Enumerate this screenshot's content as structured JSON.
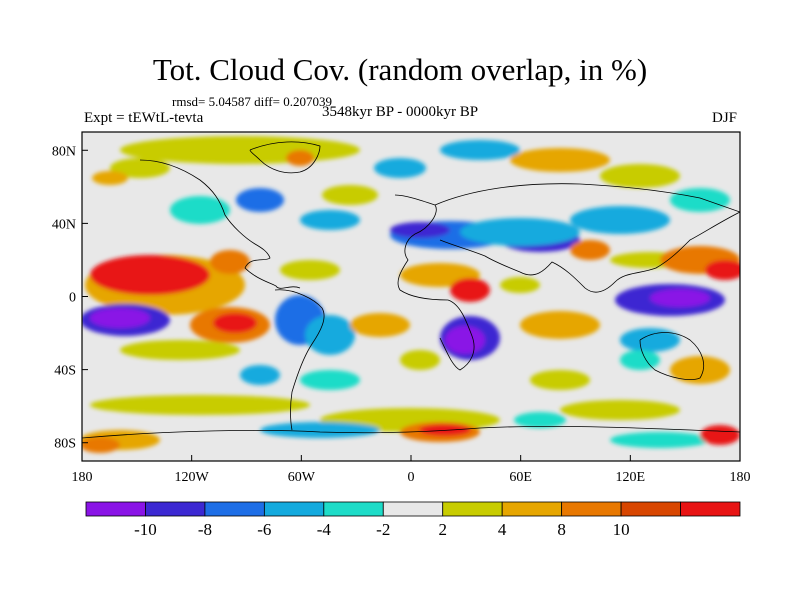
{
  "header": {
    "title": "Tot. Cloud Cov. (random overlap, in %)",
    "stats": "rmsd= 5.04587 diff= 0.207039",
    "experiment": "Expt = tEWtL-tevta",
    "period": "3548kyr BP - 0000kyr BP",
    "season": "DJF"
  },
  "axes": {
    "x_ticks": [
      "180",
      "120W",
      "60W",
      "0",
      "60E",
      "120E",
      "180"
    ],
    "y_ticks": [
      "80N",
      "40N",
      "0",
      "40S",
      "80S"
    ]
  },
  "colorbar": {
    "labels": [
      "-10",
      "-8",
      "-6",
      "-4",
      "-2",
      "2",
      "4",
      "8",
      "10"
    ],
    "colors": [
      "#8a14e6",
      "#3c28d2",
      "#1e6ee6",
      "#14aade",
      "#1edcc8",
      "#e8e8e8",
      "#c8cc00",
      "#e6a600",
      "#e87800",
      "#d84600",
      "#e81414"
    ]
  },
  "map": {
    "background": "#e8e8e8",
    "lon_range": [
      -180,
      180
    ],
    "lat_range": [
      -90,
      90
    ]
  }
}
